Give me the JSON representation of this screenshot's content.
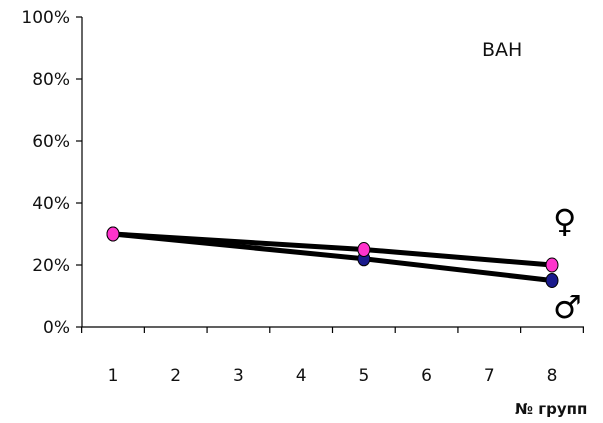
{
  "chart_data": {
    "type": "line",
    "title": "ВАН",
    "xlabel": "№ групп",
    "ylabel": "",
    "x_ticks": [
      "1",
      "2",
      "3",
      "4",
      "5",
      "6",
      "7",
      "8"
    ],
    "y_ticks": [
      "0%",
      "20%",
      "40%",
      "60%",
      "80%",
      "100%"
    ],
    "ylim": [
      0,
      100
    ],
    "xlim": [
      1,
      8
    ],
    "grid": false,
    "series": [
      {
        "name": "♀",
        "x": [
          1,
          5,
          8
        ],
        "values": [
          30,
          25,
          20
        ],
        "marker_color": "#ff33cc",
        "line_color": "#000000"
      },
      {
        "name": "♂",
        "x": [
          1,
          5,
          8
        ],
        "values": [
          30,
          22,
          15
        ],
        "marker_color": "#1a1a8c",
        "line_color": "#000000"
      }
    ]
  }
}
